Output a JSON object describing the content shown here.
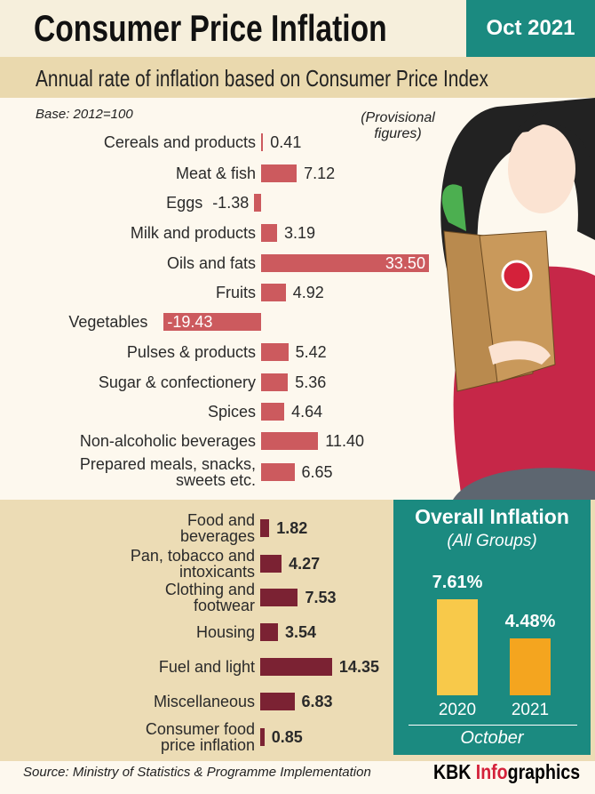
{
  "header": {
    "title": "Consumer Price Inflation",
    "date": "Oct 2021",
    "subtitle": "Annual rate of inflation based on Consumer Price Index"
  },
  "chart_data": [
    {
      "type": "hbar",
      "note": "Base: 2012=100",
      "annotation": "(Provisional figures)",
      "color": "#cc5a5e",
      "categories": [
        "Cereals and products",
        "Meat & fish",
        "Eggs",
        "Milk and products",
        "Oils and fats",
        "Fruits",
        "Vegetables",
        "Pulses & products",
        "Sugar & confectionery",
        "Spices",
        "Non-alcoholic beverages",
        "Prepared meals, snacks, sweets etc."
      ],
      "values": [
        0.41,
        7.12,
        -1.38,
        3.19,
        33.5,
        4.92,
        -19.43,
        5.42,
        5.36,
        4.64,
        11.4,
        6.65
      ],
      "value_labels": [
        "0.41",
        "7.12",
        "-1.38",
        "3.19",
        "33.50",
        "4.92",
        "-19.43",
        "5.42",
        "5.36",
        "4.64",
        "11.40",
        "6.65"
      ]
    },
    {
      "type": "hbar",
      "color": "#7b2233",
      "categories": [
        "Food and beverages",
        "Pan, tobacco and intoxicants",
        "Clothing and footwear",
        "Housing",
        "Fuel and light",
        "Miscellaneous",
        "Consumer food price inflation"
      ],
      "values": [
        1.82,
        4.27,
        7.53,
        3.54,
        14.35,
        6.83,
        0.85
      ],
      "value_labels": [
        "1.82",
        "4.27",
        "7.53",
        "3.54",
        "14.35",
        "6.83",
        "0.85"
      ]
    },
    {
      "type": "bar",
      "title": "Overall Inflation",
      "subtitle": "(All Groups)",
      "xlabel": "October",
      "categories": [
        "2020",
        "2021"
      ],
      "values": [
        7.61,
        4.48
      ],
      "value_labels": [
        "7.61%",
        "4.48%"
      ],
      "colors": [
        "#f8c94a",
        "#f4a51f"
      ]
    }
  ],
  "source": "Source: Ministry of Statistics & Programme Implementation",
  "credit": {
    "brand": "KBK",
    "accent": "Info",
    "rest": "graphics"
  }
}
